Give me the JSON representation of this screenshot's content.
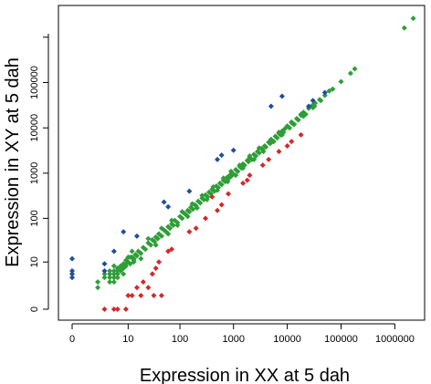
{
  "chart_data": {
    "type": "scatter",
    "title": "",
    "xlabel": "Expression in XX at 5 dah",
    "ylabel": "Expression in XY at 5 dah",
    "x_ticks": [
      "0",
      "10",
      "100",
      "1000",
      "10000",
      "100000",
      "1000000"
    ],
    "y_ticks": [
      "0",
      "10",
      "100",
      "1000",
      "10000",
      "100000"
    ],
    "x_scale": "log(x+1)",
    "y_scale": "log(y+1)",
    "xlim": [
      0,
      3000000
    ],
    "ylim": [
      0,
      3000000
    ],
    "grid": false,
    "legend": "none",
    "marker": "diamond",
    "series": [
      {
        "color": "#2e9e37",
        "points": [
          [
            2,
            2
          ],
          [
            2,
            3
          ],
          [
            3,
            4
          ],
          [
            4,
            3
          ],
          [
            4,
            5
          ],
          [
            5,
            4
          ],
          [
            5,
            6
          ],
          [
            6,
            5
          ],
          [
            6,
            7
          ],
          [
            7,
            6
          ],
          [
            7,
            8
          ],
          [
            8,
            7
          ],
          [
            8,
            9
          ],
          [
            9,
            8
          ],
          [
            10,
            10
          ],
          [
            11,
            9
          ],
          [
            12,
            13
          ],
          [
            13,
            12
          ],
          [
            14,
            15
          ],
          [
            15,
            14
          ],
          [
            4,
            4
          ],
          [
            5,
            5
          ],
          [
            6,
            6
          ],
          [
            7,
            7
          ],
          [
            8,
            8
          ],
          [
            9,
            9
          ],
          [
            3,
            5
          ],
          [
            5,
            3
          ],
          [
            6,
            4
          ],
          [
            4,
            6
          ],
          [
            9,
            11
          ],
          [
            11,
            13
          ],
          [
            13,
            11
          ],
          [
            16,
            18
          ],
          [
            18,
            16
          ],
          [
            20,
            22
          ],
          [
            22,
            20
          ],
          [
            25,
            28
          ],
          [
            28,
            25
          ],
          [
            30,
            33
          ],
          [
            33,
            30
          ],
          [
            35,
            38
          ],
          [
            38,
            35
          ],
          [
            40,
            45
          ],
          [
            45,
            40
          ],
          [
            50,
            55
          ],
          [
            55,
            50
          ],
          [
            60,
            65
          ],
          [
            65,
            60
          ],
          [
            70,
            75
          ],
          [
            75,
            70
          ],
          [
            80,
            90
          ],
          [
            90,
            80
          ],
          [
            100,
            110
          ],
          [
            110,
            100
          ],
          [
            120,
            130
          ],
          [
            130,
            120
          ],
          [
            140,
            150
          ],
          [
            150,
            140
          ],
          [
            160,
            175
          ],
          [
            175,
            160
          ],
          [
            190,
            200
          ],
          [
            200,
            190
          ],
          [
            220,
            240
          ],
          [
            240,
            220
          ],
          [
            260,
            280
          ],
          [
            280,
            260
          ],
          [
            300,
            330
          ],
          [
            330,
            300
          ],
          [
            350,
            380
          ],
          [
            380,
            350
          ],
          [
            400,
            440
          ],
          [
            440,
            400
          ],
          [
            480,
            520
          ],
          [
            520,
            480
          ],
          [
            560,
            600
          ],
          [
            600,
            560
          ],
          [
            650,
            700
          ],
          [
            700,
            650
          ],
          [
            750,
            800
          ],
          [
            800,
            750
          ],
          [
            850,
            900
          ],
          [
            900,
            850
          ],
          [
            950,
            1000
          ],
          [
            1000,
            950
          ],
          [
            1100,
            1200
          ],
          [
            1200,
            1100
          ],
          [
            1300,
            1400
          ],
          [
            1400,
            1300
          ],
          [
            1500,
            1600
          ],
          [
            1600,
            1500
          ],
          [
            1800,
            1900
          ],
          [
            1900,
            1800
          ],
          [
            2000,
            2200
          ],
          [
            2200,
            2000
          ],
          [
            2400,
            2600
          ],
          [
            2600,
            2400
          ],
          [
            2800,
            3000
          ],
          [
            3000,
            2800
          ],
          [
            3300,
            3500
          ],
          [
            3500,
            3300
          ],
          [
            3800,
            4000
          ],
          [
            4000,
            3800
          ],
          [
            4500,
            4800
          ],
          [
            4800,
            4500
          ],
          [
            5000,
            5500
          ],
          [
            5500,
            5000
          ],
          [
            6000,
            6500
          ],
          [
            6500,
            6000
          ],
          [
            7000,
            7500
          ],
          [
            7500,
            7000
          ],
          [
            8000,
            8500
          ],
          [
            8500,
            8000
          ],
          [
            9000,
            9500
          ],
          [
            10000,
            11000
          ],
          [
            11000,
            10000
          ],
          [
            12000,
            13000
          ],
          [
            13000,
            12000
          ],
          [
            15000,
            16000
          ],
          [
            16000,
            15000
          ],
          [
            18000,
            19000
          ],
          [
            20000,
            22000
          ],
          [
            22000,
            20000
          ],
          [
            25000,
            27000
          ],
          [
            28000,
            30000
          ],
          [
            30000,
            28000
          ],
          [
            33000,
            35000
          ],
          [
            40000,
            42000
          ],
          [
            42000,
            40000
          ],
          [
            50000,
            52000
          ],
          [
            60000,
            65000
          ],
          [
            70000,
            72000
          ],
          [
            100000,
            105000
          ],
          [
            150000,
            160000
          ],
          [
            180000,
            200000
          ],
          [
            1500000,
            1600000
          ],
          [
            2200000,
            2600000
          ],
          [
            12,
            18
          ],
          [
            18,
            12
          ],
          [
            25,
            35
          ],
          [
            35,
            25
          ],
          [
            45,
            60
          ],
          [
            60,
            45
          ],
          [
            70,
            90
          ],
          [
            90,
            70
          ],
          [
            110,
            140
          ],
          [
            140,
            110
          ],
          [
            170,
            210
          ],
          [
            210,
            170
          ],
          [
            260,
            320
          ],
          [
            320,
            260
          ],
          [
            420,
            500
          ],
          [
            500,
            420
          ],
          [
            650,
            780
          ],
          [
            780,
            650
          ],
          [
            900,
            1100
          ],
          [
            1100,
            900
          ],
          [
            1300,
            1500
          ],
          [
            1500,
            1300
          ],
          [
            2000,
            2400
          ],
          [
            2400,
            2000
          ],
          [
            3000,
            3600
          ],
          [
            3600,
            3000
          ],
          [
            5000,
            5600
          ],
          [
            5600,
            5000
          ],
          [
            7000,
            8000
          ],
          [
            8000,
            7000
          ],
          [
            12000,
            13500
          ],
          [
            13500,
            12000
          ],
          [
            18000,
            20000
          ],
          [
            20000,
            18000
          ],
          [
            30000,
            32000
          ],
          [
            32000,
            30000
          ],
          [
            5,
            8
          ],
          [
            8,
            5
          ],
          [
            10,
            13
          ],
          [
            13,
            10
          ]
        ]
      },
      {
        "color": "#1f4e9e",
        "points": [
          [
            0,
            12
          ],
          [
            0,
            6
          ],
          [
            0,
            5
          ],
          [
            0,
            4
          ],
          [
            3,
            6
          ],
          [
            3,
            9
          ],
          [
            5,
            18
          ],
          [
            8,
            50
          ],
          [
            15,
            40
          ],
          [
            50,
            230
          ],
          [
            60,
            180
          ],
          [
            150,
            400
          ],
          [
            500,
            2000
          ],
          [
            600,
            2500
          ],
          [
            1000,
            3200
          ],
          [
            5000,
            30000
          ],
          [
            8000,
            50000
          ],
          [
            25000,
            30000
          ],
          [
            50000,
            60000
          ],
          [
            30000,
            40000
          ]
        ]
      },
      {
        "color": "#d62728",
        "points": [
          [
            3,
            0
          ],
          [
            5,
            0
          ],
          [
            6,
            0
          ],
          [
            9,
            0
          ],
          [
            10,
            1
          ],
          [
            12,
            1
          ],
          [
            15,
            2
          ],
          [
            18,
            1
          ],
          [
            25,
            2
          ],
          [
            32,
            1
          ],
          [
            45,
            1
          ],
          [
            20,
            3
          ],
          [
            30,
            5
          ],
          [
            35,
            7
          ],
          [
            40,
            10
          ],
          [
            60,
            18
          ],
          [
            70,
            20
          ],
          [
            150,
            50
          ],
          [
            200,
            60
          ],
          [
            300,
            100
          ],
          [
            500,
            150
          ],
          [
            600,
            200
          ],
          [
            1500,
            600
          ],
          [
            1800,
            700
          ],
          [
            3500,
            1500
          ],
          [
            4500,
            2000
          ],
          [
            7000,
            3000
          ],
          [
            10000,
            4000
          ],
          [
            12000,
            5000
          ],
          [
            18000,
            7000
          ],
          [
            400,
            300
          ],
          [
            800,
            350
          ],
          [
            2000,
            900
          ]
        ]
      }
    ]
  }
}
